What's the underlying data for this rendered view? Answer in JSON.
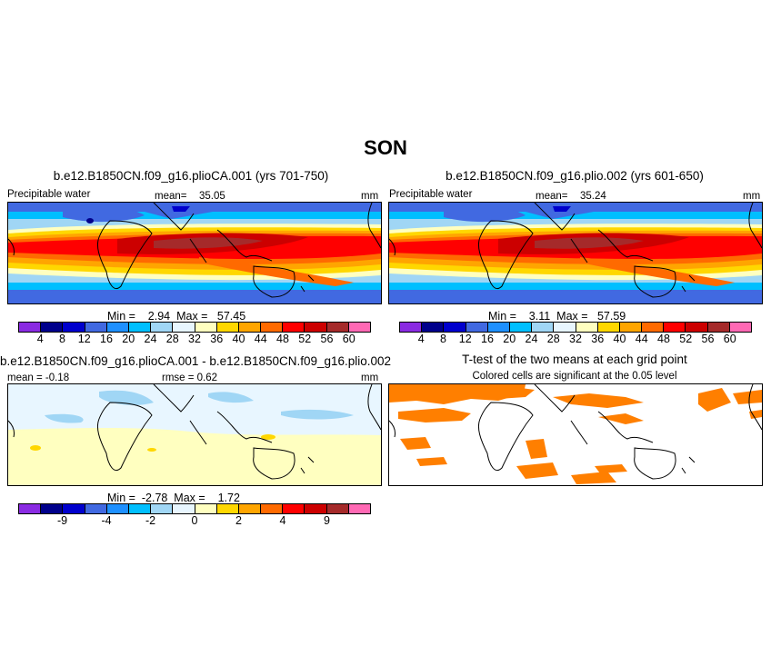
{
  "figure": {
    "season": "SON"
  },
  "panels": {
    "p1": {
      "title": "b.e12.B1850CN.f09_g16.plioCA.001 (yrs 701-750)",
      "variable": "Precipitable water",
      "mean_label": "mean=",
      "mean_value": "35.05",
      "units": "mm",
      "minmax_text": "Min =    2.94  Max =   57.45"
    },
    "p2": {
      "title": "b.e12.B1850CN.f09_g16.plio.002 (yrs 601-650)",
      "variable": "Precipitable water",
      "mean_label": "mean=",
      "mean_value": "35.24",
      "units": "mm",
      "minmax_text": "Min =    3.11  Max =   57.59"
    },
    "p3": {
      "title": "b.e12.B1850CN.f09_g16.plioCA.001 - b.e12.B1850CN.f09_g16.plio.002",
      "mean_text": "mean =  -0.18",
      "rmse_text": "rmse =    0.62",
      "units": "mm",
      "minmax_text": "Min =  -2.78  Max =    1.72"
    },
    "p4": {
      "title": "T-test of the two means at each grid point",
      "subtitle": "Colored cells are significant at the 0.05 level"
    }
  },
  "colorbars": {
    "absolute": {
      "colors": [
        "#8a2be2",
        "#00008b",
        "#0000cd",
        "#4169e1",
        "#1e90ff",
        "#00bfff",
        "#a0d6f5",
        "#e8f6ff",
        "#ffffc0",
        "#ffd700",
        "#ffa500",
        "#ff6a00",
        "#ff0000",
        "#cc0000",
        "#a52a2a",
        "#ff69b4"
      ],
      "ticks": [
        "4",
        "8",
        "12",
        "16",
        "20",
        "24",
        "28",
        "32",
        "36",
        "40",
        "44",
        "48",
        "52",
        "56",
        "60"
      ]
    },
    "difference": {
      "colors": [
        "#8a2be2",
        "#00008b",
        "#0000cd",
        "#4169e1",
        "#1e90ff",
        "#00bfff",
        "#a0d6f5",
        "#e8f6ff",
        "#ffffc0",
        "#ffd700",
        "#ffa500",
        "#ff6a00",
        "#ff0000",
        "#cc0000",
        "#a52a2a",
        "#ff69b4"
      ],
      "ticks": [
        "-9",
        "-4",
        "-2",
        "0",
        "2",
        "4",
        "9"
      ]
    }
  },
  "ttest": {
    "significant_color": "#ff7f00"
  }
}
